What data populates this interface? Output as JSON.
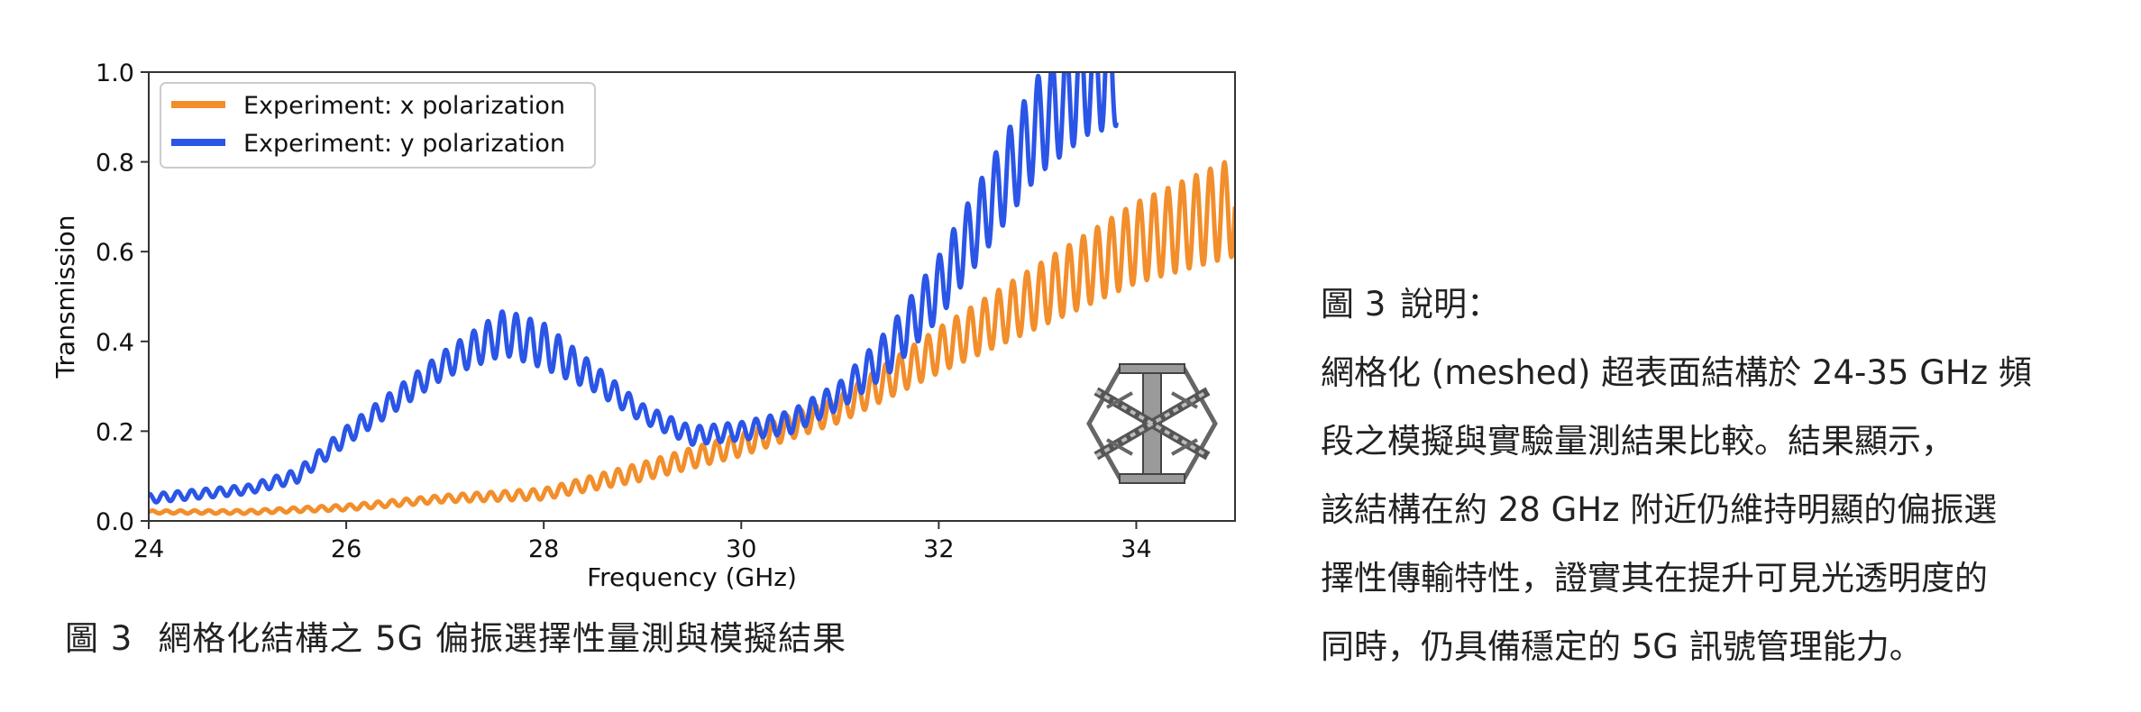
{
  "figure_caption": {
    "number": "圖 3",
    "text": "網格化結構之 5G 偏振選擇性量測與模擬結果"
  },
  "description": {
    "title_number": "圖 3",
    "title_label": "說明：",
    "lines": [
      "網格化 (meshed) 超表面結構於 24-35 GHz 頻",
      "段之模擬與實驗量測結果比較。結果顯示，",
      "該結構在約 28 GHz 附近仍維持明顯的偏振選",
      "擇性傳輸特性，證實其在提升可見光透明度的",
      "同時，仍具備穩定的 5G 訊號管理能力。"
    ]
  },
  "chart_data": {
    "type": "line",
    "title": "",
    "xlabel": "Frequency (GHz)",
    "ylabel": "Transmission",
    "xlim": [
      24,
      35
    ],
    "ylim": [
      0,
      1.0
    ],
    "xticks": [
      24,
      26,
      28,
      30,
      32,
      34
    ],
    "yticks": [
      0.0,
      0.2,
      0.4,
      0.6,
      0.8,
      1.0
    ],
    "xtick_labels": [
      "24",
      "26",
      "28",
      "30",
      "32",
      "34"
    ],
    "ytick_labels": [
      "0.0",
      "0.2",
      "0.4",
      "0.6",
      "0.8",
      "1.0"
    ],
    "grid": false,
    "legend_position": "upper-left",
    "inset": "hexagonal meshed unit-cell icon (lower right)",
    "series": [
      {
        "name": "Experiment: x polarization",
        "color": "#f28e2b",
        "envelope_x": [
          24,
          25,
          26,
          27,
          28,
          29,
          30,
          31,
          32,
          33,
          34,
          34.5,
          35
        ],
        "envelope_y": [
          0.02,
          0.02,
          0.03,
          0.05,
          0.06,
          0.11,
          0.17,
          0.25,
          0.38,
          0.5,
          0.62,
          0.66,
          0.7
        ],
        "envelope_amplitude": [
          0.003,
          0.004,
          0.006,
          0.008,
          0.012,
          0.02,
          0.025,
          0.03,
          0.05,
          0.07,
          0.09,
          0.1,
          0.11
        ]
      },
      {
        "name": "Experiment: y polarization",
        "color": "#2b55e6",
        "envelope_x": [
          24,
          24.5,
          25,
          25.5,
          26,
          26.5,
          27,
          27.6,
          28,
          28.5,
          29,
          29.5,
          30,
          30.5,
          31,
          31.5,
          32,
          32.5,
          33,
          33.5,
          33.8
        ],
        "envelope_y": [
          0.05,
          0.06,
          0.07,
          0.1,
          0.19,
          0.27,
          0.35,
          0.42,
          0.39,
          0.32,
          0.24,
          0.19,
          0.2,
          0.22,
          0.28,
          0.38,
          0.52,
          0.7,
          0.88,
          0.98,
          1.0
        ],
        "envelope_amplitude": [
          0.01,
          0.01,
          0.01,
          0.015,
          0.02,
          0.025,
          0.03,
          0.05,
          0.05,
          0.03,
          0.02,
          0.02,
          0.02,
          0.025,
          0.03,
          0.05,
          0.07,
          0.09,
          0.11,
          0.12,
          0.12
        ]
      }
    ],
    "ripple_cycles_per_ghz": 7
  }
}
